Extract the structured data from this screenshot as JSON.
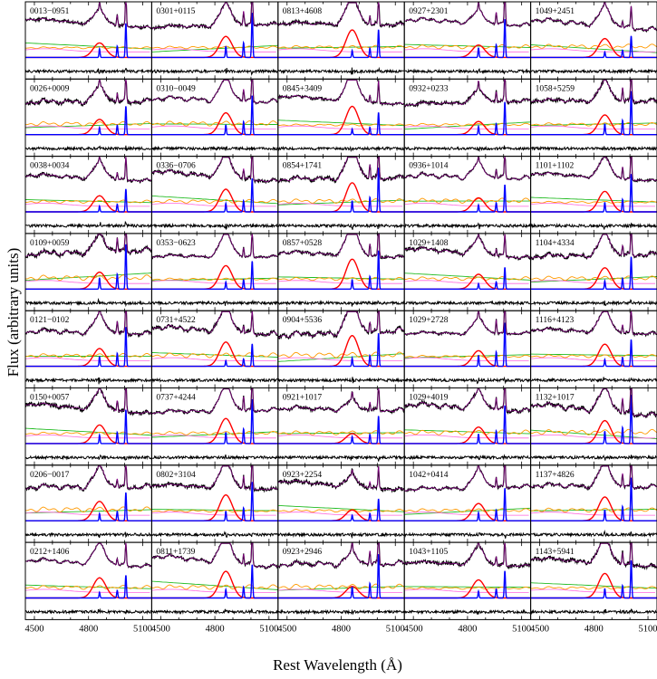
{
  "figure": {
    "ylabel": "Flux (arbitrary units)",
    "xlabel": "Rest Wavelength (Å)"
  },
  "chart_data": {
    "type": "line",
    "xlim": [
      4450,
      5150
    ],
    "x_ticks": [
      4500,
      4800,
      5100
    ],
    "grid": false,
    "legend": "none",
    "colors": {
      "spectrum": "#000000",
      "model": "#a000a0",
      "feii": "#ff9900",
      "powerlaw": "#22bb22",
      "host": "#ff66dd",
      "broad_hbeta": "#ff0000",
      "narrow_lines": "#0000ff",
      "residual": "#000000"
    },
    "columns": [
      [
        "0013−0951",
        "0026+0009",
        "0038+0034",
        "0109+0059",
        "0121−0102",
        "0150+0057",
        "0206−0017",
        "0212+1406"
      ],
      [
        "0301+0115",
        "0310−0049",
        "0336−0706",
        "0353−0623",
        "0731+4522",
        "0737+4244",
        "0802+3104",
        "0811+1739"
      ],
      [
        "0813+4608",
        "0845+3409",
        "0854+1741",
        "0857+0528",
        "0904+5536",
        "0921+1017",
        "0923+2254",
        "0923+2946"
      ],
      [
        "0927+2301",
        "0932+0233",
        "0936+1014",
        "1029+1408",
        "1029+2728",
        "1029+4019",
        "1042+0414",
        "1043+1105"
      ],
      [
        "1049+2451",
        "1058+5259",
        "1101+1102",
        "1104+4334",
        "1116+4123",
        "1132+1017",
        "1137+4826",
        "1143+5941"
      ]
    ]
  }
}
